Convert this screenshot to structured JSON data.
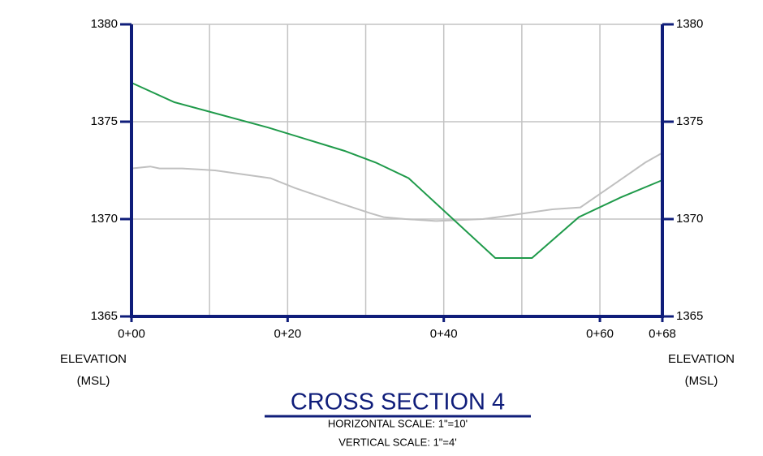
{
  "chart_data": {
    "type": "line",
    "title": "CROSS SECTION 4",
    "subtitles": [
      "HORIZONTAL SCALE: 1\"=10'",
      "VERTICAL SCALE: 1\"=4'"
    ],
    "ylabel": [
      "ELEVATION",
      "(MSL)"
    ],
    "y2label": [
      "ELEVATION",
      "(MSL)"
    ],
    "xlim": [
      0,
      68
    ],
    "xticks": [
      {
        "value": 0,
        "label": "0+00"
      },
      {
        "value": 20,
        "label": "0+20"
      },
      {
        "value": 40,
        "label": "0+40"
      },
      {
        "value": 60,
        "label": "0+60"
      },
      {
        "value": 68,
        "label": "0+68"
      }
    ],
    "xgrid": [
      10,
      20,
      30,
      40,
      50,
      60
    ],
    "ylim": [
      1365,
      1380
    ],
    "yticks": [
      1365,
      1370,
      1375,
      1380
    ],
    "y2lim": [
      1365,
      1380
    ],
    "y2ticks": [
      1365,
      1370,
      1375,
      1380
    ],
    "grid": true,
    "grid_color": "#c3c3c3",
    "axis_color": "#0f1d7a",
    "series": [
      {
        "color": "#1f9a4a",
        "x": [
          0,
          5.5,
          17.5,
          27.3,
          31.3,
          35.5,
          46.6,
          51.3,
          57.3,
          62.6,
          68
        ],
        "values": [
          1377.0,
          1376.0,
          1374.7,
          1373.5,
          1372.9,
          1372.1,
          1368.0,
          1368.0,
          1370.1,
          1371.1,
          1372.0
        ]
      },
      {
        "color": "#c0c0c0",
        "x": [
          0,
          2.4,
          3.6,
          6.5,
          10.7,
          17.8,
          20.9,
          26.8,
          30.6,
          32.3,
          35.1,
          39.0,
          45.0,
          48.7,
          53.9,
          57.5,
          62.2,
          65.8,
          68
        ],
        "values": [
          1372.6,
          1372.7,
          1372.6,
          1372.6,
          1372.5,
          1372.1,
          1371.6,
          1370.8,
          1370.3,
          1370.1,
          1370.0,
          1369.9,
          1370.0,
          1370.2,
          1370.5,
          1370.6,
          1371.9,
          1372.9,
          1373.4
        ]
      }
    ]
  }
}
